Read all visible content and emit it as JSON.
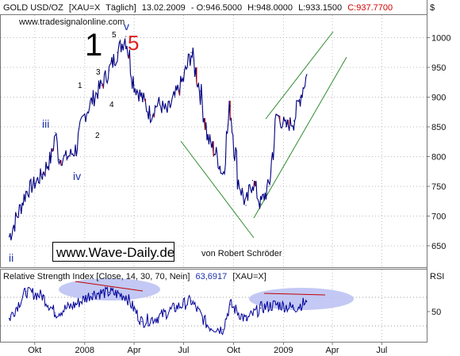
{
  "header": {
    "symbol": "GOLD USD/OZ",
    "ticker": "[XAU=X",
    "period": "Täglich]",
    "date": "13.02.2009",
    "open": "- O:946.5000",
    "high": "H:948.0000",
    "low": "L:933.1500",
    "close": "C:937.7700"
  },
  "source_url": "www.tradesignalonline.com",
  "currency_label": "$",
  "watermark": "www.Wave-Daily.de",
  "author": "von Robert Schröder",
  "rsi_header": {
    "title": "Relative Strength Index [Close, 14, 30, 70, Nein]",
    "value": "63,6917",
    "ticker": "[XAU=X]"
  },
  "rsi_axis_label": "RSI",
  "wave_labels": {
    "big_one": "1",
    "big_five": "5",
    "v": "v",
    "one": "1",
    "two": "2",
    "three": "3",
    "four": "4",
    "five": "5",
    "iii": "iii",
    "iv": "iv",
    "ii": "ii"
  },
  "colors": {
    "price_line": "#000080",
    "candle_down": "#c00000",
    "rsi_line": "#000099",
    "trend_line": "#2e8b2e",
    "highlight": "#b9bff2",
    "red_label": "#e02020",
    "blue_label": "#1a2fa8"
  },
  "chart_data": [
    {
      "type": "line",
      "title": "GOLD USD/OZ [XAU=X Täglich]",
      "ylabel": "$",
      "ylim": [
        625,
        1025
      ],
      "yticks": [
        650,
        700,
        750,
        800,
        850,
        900,
        950,
        1000
      ],
      "xticks": [
        "Okt",
        "2008",
        "Apr",
        "Jul",
        "Okt",
        "2009",
        "Apr",
        "Jul"
      ],
      "series": [
        {
          "name": "GOLD USD/OZ",
          "x": [
            "2007-08-15",
            "2007-09-01",
            "2007-09-15",
            "2007-10-01",
            "2007-10-15",
            "2007-11-01",
            "2007-11-08",
            "2007-11-15",
            "2007-12-01",
            "2007-12-15",
            "2008-01-01",
            "2008-01-15",
            "2008-02-01",
            "2008-02-15",
            "2008-03-01",
            "2008-03-17",
            "2008-04-01",
            "2008-04-15",
            "2008-05-01",
            "2008-05-15",
            "2008-06-01",
            "2008-06-15",
            "2008-07-01",
            "2008-07-15",
            "2008-08-01",
            "2008-08-15",
            "2008-09-01",
            "2008-09-11",
            "2008-09-25",
            "2008-10-10",
            "2008-10-24",
            "2008-11-05",
            "2008-11-20",
            "2008-12-05",
            "2008-12-20",
            "2009-01-05",
            "2009-01-20",
            "2009-02-01",
            "2009-02-13"
          ],
          "values": [
            665,
            705,
            740,
            755,
            770,
            800,
            840,
            795,
            800,
            810,
            870,
            895,
            920,
            945,
            975,
            1002,
            920,
            900,
            870,
            890,
            875,
            900,
            930,
            975,
            910,
            830,
            800,
            770,
            885,
            760,
            718,
            760,
            720,
            750,
            870,
            850,
            860,
            900,
            938
          ]
        }
      ],
      "annotations": [
        "1",
        "5",
        "v",
        "1",
        "2",
        "3",
        "4",
        "5",
        "iii",
        "iv",
        "ii",
        "www.Wave-Daily.de",
        "von Robert Schröder"
      ]
    },
    {
      "type": "line",
      "title": "Relative Strength Index [Close, 14, 30, 70, Nein]",
      "ylabel": "RSI",
      "yticks": [
        50
      ],
      "ylim": [
        15,
        85
      ],
      "series": [
        {
          "name": "Relative Strength Index",
          "x": [
            "2007-08-15",
            "2007-09-15",
            "2007-10-15",
            "2007-11-08",
            "2007-12-15",
            "2008-01-15",
            "2008-02-15",
            "2008-03-17",
            "2008-04-15",
            "2008-05-15",
            "2008-06-15",
            "2008-07-15",
            "2008-08-15",
            "2008-09-11",
            "2008-09-25",
            "2008-10-24",
            "2008-11-20",
            "2008-12-20",
            "2009-01-20",
            "2009-02-13"
          ],
          "values": [
            40,
            78,
            72,
            48,
            60,
            75,
            77,
            72,
            36,
            42,
            55,
            65,
            30,
            25,
            60,
            38,
            55,
            60,
            55,
            63.7
          ]
        }
      ]
    }
  ]
}
